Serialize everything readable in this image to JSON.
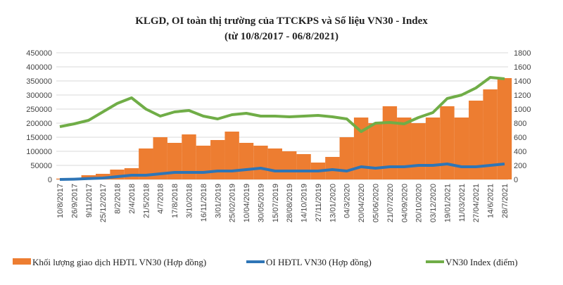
{
  "chart_data": {
    "type": "bar+line",
    "title": "KLGD,  OI toàn thị trường của TTCKPS  và  Số liệu VN30 - Index",
    "subtitle": "(từ 10/8/2017 - 06/8/2021)",
    "left_axis": {
      "range": [
        0,
        450000
      ],
      "ticks": [
        0,
        50000,
        100000,
        150000,
        200000,
        250000,
        300000,
        350000,
        400000,
        450000
      ]
    },
    "right_axis": {
      "range": [
        0,
        1800
      ],
      "ticks": [
        0,
        200,
        400,
        600,
        800,
        1000,
        1200,
        1400,
        1600,
        1800
      ]
    },
    "grid": true,
    "legend_placement": "bottom",
    "categories": [
      "10/8/2017",
      "26/9/2017",
      "9/11/2017",
      "25/12/2017",
      "8/2/2018",
      "2/4/2018",
      "21/5/2018",
      "4/7/2018",
      "17/8/2018",
      "3/10/2018",
      "16/11/2018",
      "3/01/2019",
      "25/02/2019",
      "10/04/2019",
      "30/05/2019",
      "15/07/2019",
      "28/08/2019",
      "14/10/2019",
      "27/11/2019",
      "13/01/2020",
      "04/3/2020",
      "20/04/2020",
      "05/06/2020",
      "21/07/2020",
      "04/09/2020",
      "20/10/2020",
      "03/12/2020",
      "19/01/2021",
      "11/03/2021",
      "27/04/2021",
      "14/6/2021",
      "28/7/2021"
    ],
    "series": [
      {
        "name": "Khối lượng giao  dịch HĐTL VN30 (Hợp đồng)",
        "type": "bar",
        "axis": "left",
        "color": "#ED7D31",
        "values": [
          3000,
          5000,
          15000,
          20000,
          35000,
          40000,
          110000,
          150000,
          130000,
          160000,
          120000,
          140000,
          170000,
          130000,
          120000,
          110000,
          100000,
          90000,
          60000,
          80000,
          150000,
          220000,
          200000,
          260000,
          220000,
          200000,
          220000,
          260000,
          220000,
          280000,
          320000,
          360000
        ]
      },
      {
        "name": "OI HĐTL VN30 (Hợp đồng)",
        "type": "line",
        "axis": "left",
        "color": "#2E75B6",
        "values": [
          0,
          1000,
          3000,
          5000,
          10000,
          15000,
          15000,
          20000,
          25000,
          25000,
          25000,
          30000,
          30000,
          35000,
          40000,
          30000,
          30000,
          30000,
          30000,
          35000,
          30000,
          45000,
          40000,
          45000,
          45000,
          50000,
          50000,
          55000,
          45000,
          45000,
          50000,
          55000
        ]
      },
      {
        "name": "VN30 Index (điểm)",
        "type": "line",
        "axis": "right",
        "color": "#70AD47",
        "values": [
          750,
          790,
          840,
          960,
          1080,
          1160,
          1000,
          900,
          960,
          980,
          900,
          860,
          920,
          940,
          900,
          900,
          890,
          900,
          910,
          890,
          860,
          680,
          800,
          810,
          790,
          880,
          950,
          1150,
          1200,
          1300,
          1450,
          1430
        ]
      }
    ]
  }
}
